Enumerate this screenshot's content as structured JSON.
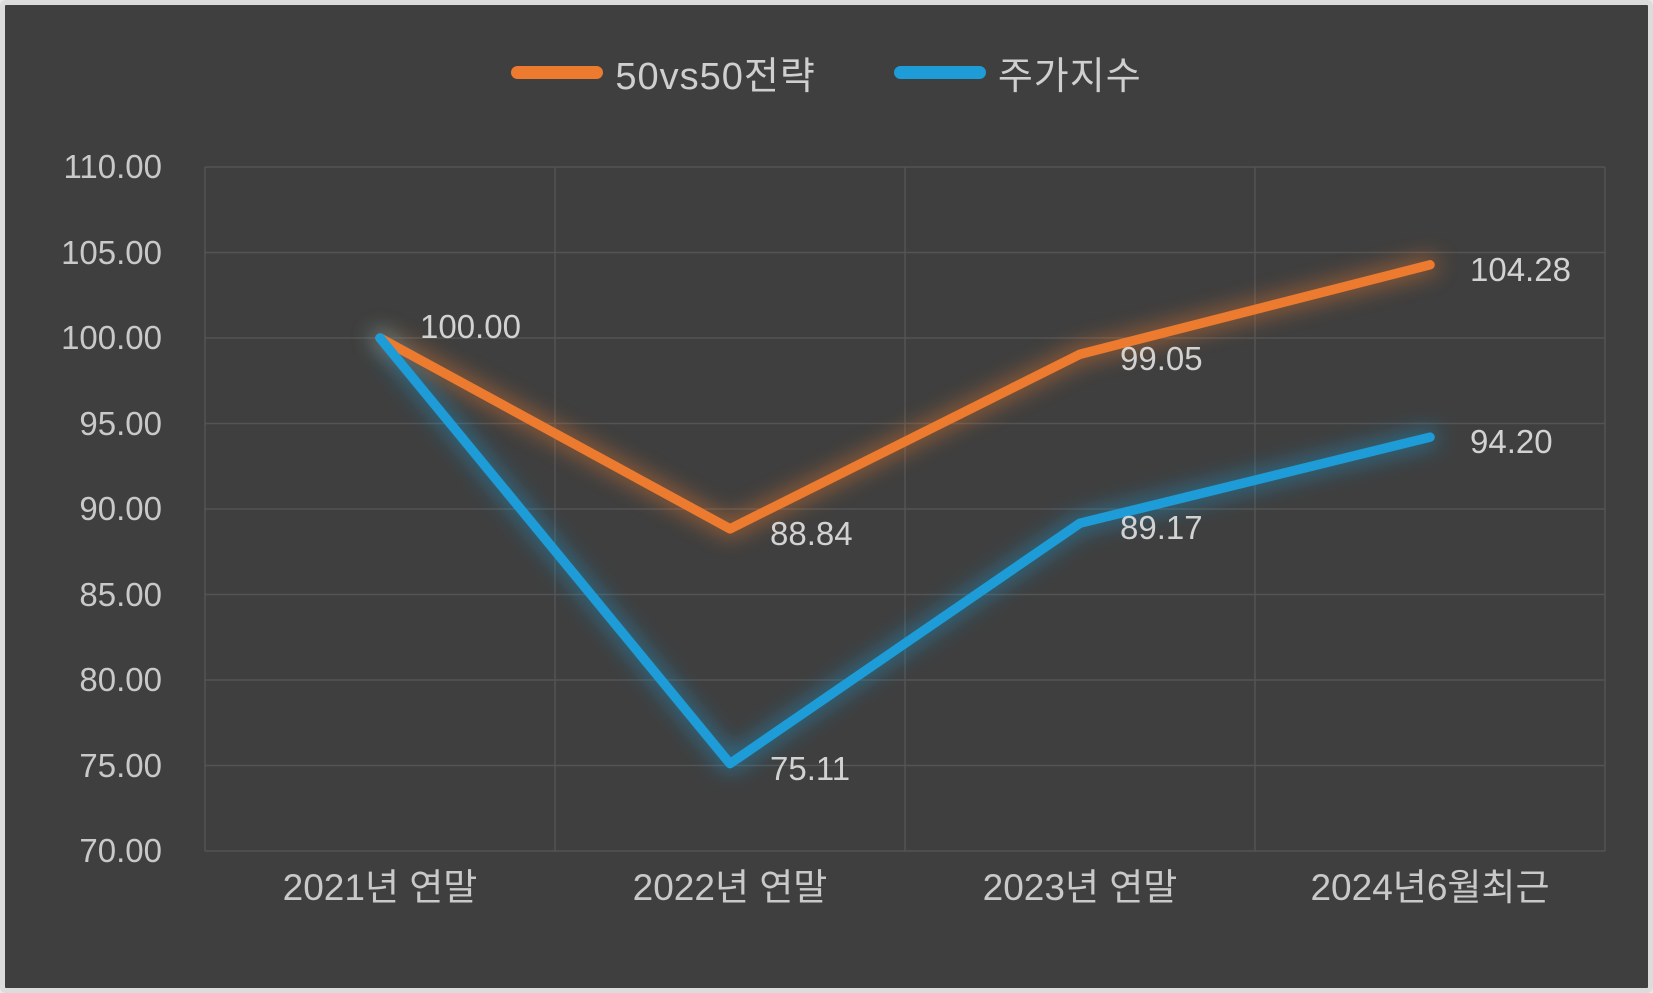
{
  "style": {
    "background": "#3F3F3F",
    "frame_color": "#DCDCDC",
    "grid_color": "#545454",
    "text_color": "#C9C9C9",
    "series_orange": "#EC7A2F",
    "series_blue": "#1E9CD7"
  },
  "legend": {
    "items": [
      {
        "label": "50vs50전략",
        "color": "#EC7A2F"
      },
      {
        "label": "주가지수",
        "color": "#1E9CD7"
      }
    ]
  },
  "chart_data": {
    "type": "line",
    "title": "",
    "xlabel": "",
    "ylabel": "",
    "categories": [
      "2021년 연말",
      "2022년 연말",
      "2023년 연말",
      "2024년6월최근"
    ],
    "series": [
      {
        "name": "50vs50전략",
        "color": "#EC7A2F",
        "values": [
          100.0,
          88.84,
          99.05,
          104.28
        ],
        "data_labels": [
          "100.00",
          "88.84",
          "99.05",
          "104.28"
        ]
      },
      {
        "name": "주가지수",
        "color": "#1E9CD7",
        "values": [
          100.0,
          75.11,
          89.17,
          94.2
        ],
        "data_labels": [
          "",
          "75.11",
          "89.17",
          "94.20"
        ]
      }
    ],
    "ylim": [
      70,
      110
    ],
    "ytick_step": 5,
    "yticks": [
      "110.00",
      "105.00",
      "100.00",
      "95.00",
      "90.00",
      "85.00",
      "80.00",
      "75.00",
      "70.00"
    ],
    "grid": true,
    "legend_position": "top-center"
  }
}
